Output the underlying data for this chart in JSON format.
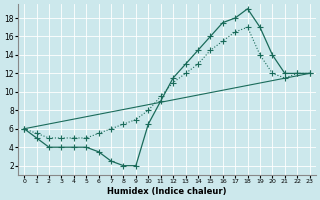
{
  "xlabel": "Humidex (Indice chaleur)",
  "bg_color": "#cce8ec",
  "line_color": "#1a6b5a",
  "xlim": [
    -0.5,
    23.5
  ],
  "ylim": [
    1,
    19.5
  ],
  "xticks": [
    0,
    1,
    2,
    3,
    4,
    5,
    6,
    7,
    8,
    9,
    10,
    11,
    12,
    13,
    14,
    15,
    16,
    17,
    18,
    19,
    20,
    21,
    22,
    23
  ],
  "yticks": [
    2,
    4,
    6,
    8,
    10,
    12,
    14,
    16,
    18
  ],
  "line1_x": [
    0,
    1,
    2,
    3,
    4,
    5,
    6,
    7,
    8,
    9,
    10,
    11,
    12,
    13,
    14,
    15,
    16,
    17,
    18,
    19,
    20,
    21,
    22,
    23
  ],
  "line1_y": [
    6,
    5,
    4,
    4,
    4,
    4,
    3.5,
    2.5,
    2,
    2,
    6.5,
    9,
    11.5,
    13,
    14.5,
    16,
    17.5,
    18,
    19,
    17,
    14,
    12,
    12,
    12
  ],
  "line2_x": [
    0,
    1,
    2,
    3,
    4,
    5,
    6,
    7,
    8,
    9,
    10,
    11,
    12,
    13,
    14,
    15,
    16,
    17,
    18,
    19,
    20,
    21,
    22,
    23
  ],
  "line2_y": [
    6,
    5.5,
    5,
    5,
    5,
    5,
    5.5,
    6,
    6.5,
    7,
    8,
    9.5,
    11,
    12,
    13,
    14.5,
    15.5,
    16.5,
    17,
    14,
    12,
    11.5,
    12,
    12
  ],
  "line3_x": [
    0,
    23
  ],
  "line3_y": [
    6,
    12
  ]
}
